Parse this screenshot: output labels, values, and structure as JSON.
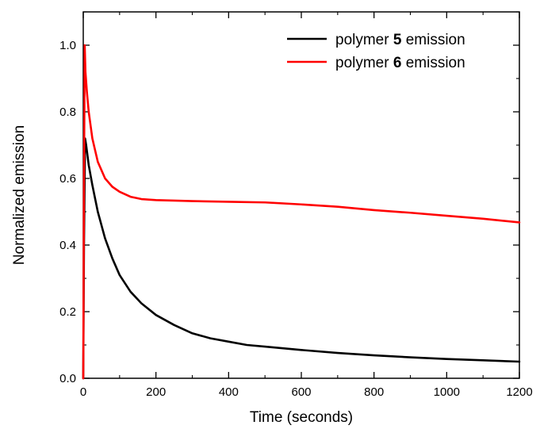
{
  "chart_data": {
    "type": "line",
    "xlabel": "Time (seconds)",
    "ylabel": "Normalized emission",
    "xlim": [
      0,
      1200
    ],
    "ylim": [
      0,
      1.1
    ],
    "x_ticks": [
      "0",
      "200",
      "400",
      "600",
      "800",
      "1000",
      "1200"
    ],
    "y_ticks": [
      "0.0",
      "0.2",
      "0.4",
      "0.6",
      "0.8",
      "1.0"
    ],
    "legend_position": "top-right",
    "series": [
      {
        "name": "polymer 5 emission",
        "legend_prefix": "polymer ",
        "legend_number": "5",
        "legend_suffix": " emission",
        "color": "#000000",
        "x": [
          0,
          2,
          5,
          8,
          15,
          25,
          40,
          60,
          80,
          100,
          130,
          160,
          200,
          250,
          300,
          350,
          400,
          450,
          500,
          600,
          700,
          800,
          900,
          1000,
          1100,
          1200
        ],
        "y": [
          0.0,
          0.4,
          0.72,
          0.7,
          0.64,
          0.58,
          0.5,
          0.42,
          0.36,
          0.31,
          0.26,
          0.225,
          0.19,
          0.16,
          0.135,
          0.12,
          0.11,
          0.1,
          0.095,
          0.085,
          0.076,
          0.069,
          0.063,
          0.058,
          0.054,
          0.05
        ]
      },
      {
        "name": "polymer 6 emission",
        "legend_prefix": "polymer ",
        "legend_number": "6",
        "legend_suffix": " emission",
        "color": "#ff0000",
        "x": [
          0,
          2,
          4,
          6,
          10,
          15,
          25,
          40,
          60,
          80,
          100,
          130,
          160,
          200,
          300,
          400,
          500,
          600,
          700,
          800,
          900,
          1000,
          1100,
          1200
        ],
        "y": [
          0.0,
          0.6,
          1.0,
          0.92,
          0.86,
          0.8,
          0.72,
          0.65,
          0.6,
          0.575,
          0.56,
          0.545,
          0.538,
          0.535,
          0.532,
          0.53,
          0.528,
          0.522,
          0.515,
          0.505,
          0.497,
          0.488,
          0.479,
          0.468
        ]
      }
    ]
  }
}
